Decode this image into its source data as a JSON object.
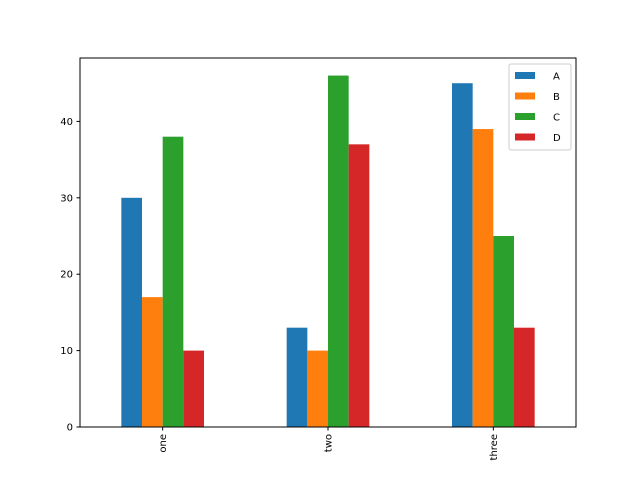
{
  "chart_data": {
    "type": "bar",
    "categories": [
      "one",
      "two",
      "three"
    ],
    "series": [
      {
        "name": "A",
        "values": [
          30,
          13,
          45
        ],
        "color": "#1f77b4"
      },
      {
        "name": "B",
        "values": [
          17,
          10,
          39
        ],
        "color": "#ff7f0e"
      },
      {
        "name": "C",
        "values": [
          38,
          46,
          25
        ],
        "color": "#2ca02c"
      },
      {
        "name": "D",
        "values": [
          10,
          37,
          13
        ],
        "color": "#d62728"
      }
    ],
    "title": "",
    "xlabel": "",
    "ylabel": "",
    "ylim": [
      0,
      48.3
    ],
    "yticks": [
      0,
      10,
      20,
      30,
      40
    ],
    "grid": false,
    "legend_position": "top-right",
    "x_tick_rotation": "vertical"
  }
}
